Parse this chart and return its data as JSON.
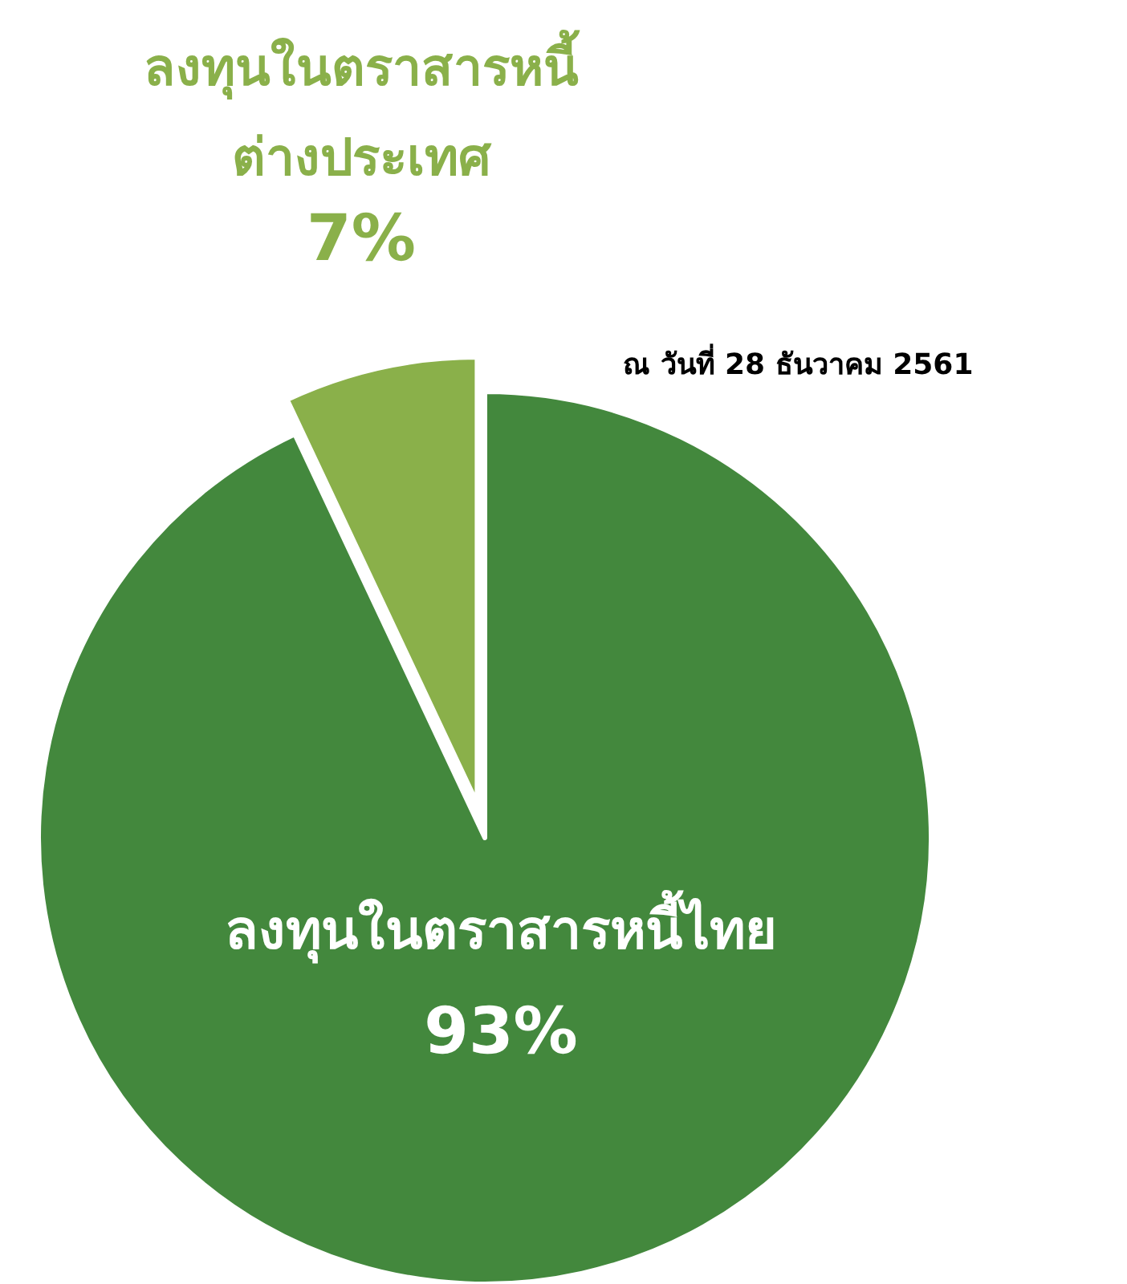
{
  "chart_data": {
    "type": "pie",
    "categories": [
      "ลงทุนในตราสารหนี้ไทย",
      "ลงทุนในตราสารหนี้ต่างประเทศ"
    ],
    "values": [
      93,
      7
    ],
    "colors": [
      "#43883d",
      "#8ab04a"
    ],
    "value_labels": [
      "93%",
      "7%"
    ],
    "annotations": [
      "ณ วันที่ 28 ธันวาคม 2561"
    ]
  }
}
